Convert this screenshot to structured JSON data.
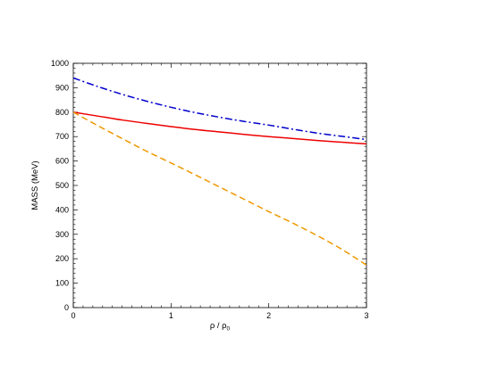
{
  "chart_data": {
    "type": "line",
    "title": "",
    "xlabel": "ρ / ρ",
    "xlabel_subscript": "0",
    "ylabel": "MASS (MeV)",
    "xlim": [
      0,
      3
    ],
    "ylim": [
      0,
      1000
    ],
    "x_ticks": [
      "0",
      "1",
      "2",
      "3"
    ],
    "y_ticks": [
      "0",
      "100",
      "200",
      "300",
      "400",
      "500",
      "600",
      "700",
      "800",
      "900",
      "1000"
    ],
    "grid": false,
    "legend": "none",
    "series": [
      {
        "style": "dash-dot",
        "color": "#0000cc",
        "x": [
          0,
          0.25,
          0.5,
          0.75,
          1.0,
          1.25,
          1.5,
          1.75,
          2.0,
          2.25,
          2.5,
          2.75,
          3.0
        ],
        "y": [
          940,
          905,
          873,
          845,
          820,
          798,
          779,
          762,
          747,
          730,
          714,
          701,
          688
        ]
      },
      {
        "style": "solid",
        "color": "#ee0000",
        "x": [
          0,
          0.25,
          0.5,
          0.75,
          1.0,
          1.25,
          1.5,
          1.75,
          2.0,
          2.25,
          2.5,
          2.75,
          3.0
        ],
        "y": [
          800,
          784,
          768,
          754,
          741,
          729,
          719,
          709,
          700,
          692,
          684,
          677,
          670
        ]
      },
      {
        "style": "dashed",
        "color": "#ee9900",
        "x": [
          0,
          0.25,
          0.5,
          0.75,
          1.0,
          1.25,
          1.5,
          1.75,
          2.0,
          2.25,
          2.5,
          2.75,
          3.0
        ],
        "y": [
          800,
          745,
          692,
          640,
          592,
          543,
          493,
          443,
          393,
          345,
          294,
          238,
          174
        ]
      }
    ]
  }
}
